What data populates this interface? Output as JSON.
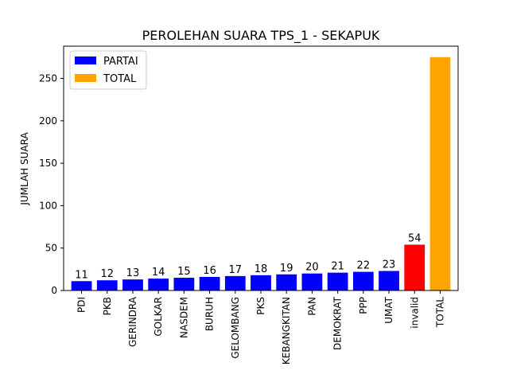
{
  "chart_data": {
    "type": "bar",
    "title": "PEROLEHAN SUARA TPS_1 - SEKAPUK",
    "xlabel": "",
    "ylabel": "JUMLAH SUARA",
    "ylim": [
      0,
      288
    ],
    "yticks": [
      0,
      50,
      100,
      150,
      200,
      250
    ],
    "grid": false,
    "legend_position": "top-left",
    "legend": [
      {
        "label": "PARTAI",
        "color": "#0000ff"
      },
      {
        "label": "TOTAL",
        "color": "#ffa500"
      }
    ],
    "categories": [
      "PDI",
      "PKB",
      "GERINDRA",
      "GOLKAR",
      "NASDEM",
      "BURUH",
      "GELOMBANG",
      "PKS",
      "KEBANGKITAN",
      "PAN",
      "DEMOKRAT",
      "PPP",
      "UMAT",
      "invalid",
      "TOTAL"
    ],
    "values": [
      11,
      12,
      13,
      14,
      15,
      16,
      17,
      18,
      19,
      20,
      21,
      22,
      23,
      54,
      275
    ],
    "value_labels": [
      "11",
      "12",
      "13",
      "14",
      "15",
      "16",
      "17",
      "18",
      "19",
      "20",
      "21",
      "22",
      "23",
      "54",
      ""
    ],
    "colors": [
      "#0000ff",
      "#0000ff",
      "#0000ff",
      "#0000ff",
      "#0000ff",
      "#0000ff",
      "#0000ff",
      "#0000ff",
      "#0000ff",
      "#0000ff",
      "#0000ff",
      "#0000ff",
      "#0000ff",
      "#ff0000",
      "#ffa500"
    ]
  }
}
